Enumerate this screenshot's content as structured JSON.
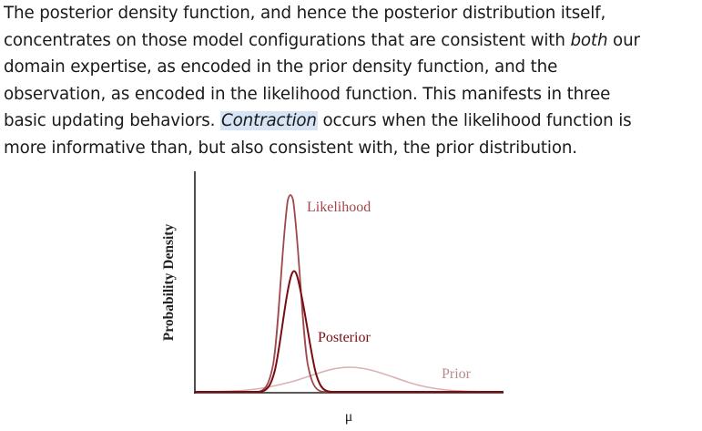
{
  "text": {
    "line1": "The posterior density function, and hence the posterior distribution itself,",
    "line2_a": "concentrates on those model configurations that are consistent with ",
    "line2_em": "both",
    "line2_b": " our",
    "line3": "domain expertise, as encoded in the prior density function, and the",
    "line4": "observation, as encoded in the likelihood function. This manifests in three",
    "line5_a": "basic updating behaviors. ",
    "line5_em": "Contraction",
    "line5_b": " occurs when the likelihood function is",
    "line6": "more informative than, but also consistent with, the prior distribution."
  },
  "figure": {
    "ylabel": "Probability Density",
    "xlabel": "μ",
    "labels": {
      "likelihood": "Likelihood",
      "posterior": "Posterior",
      "prior": "Prior"
    },
    "colors": {
      "likelihood": "#a0474b",
      "posterior": "#7a0d12",
      "prior": "#d9b3b3",
      "axis": "#222222"
    }
  }
}
